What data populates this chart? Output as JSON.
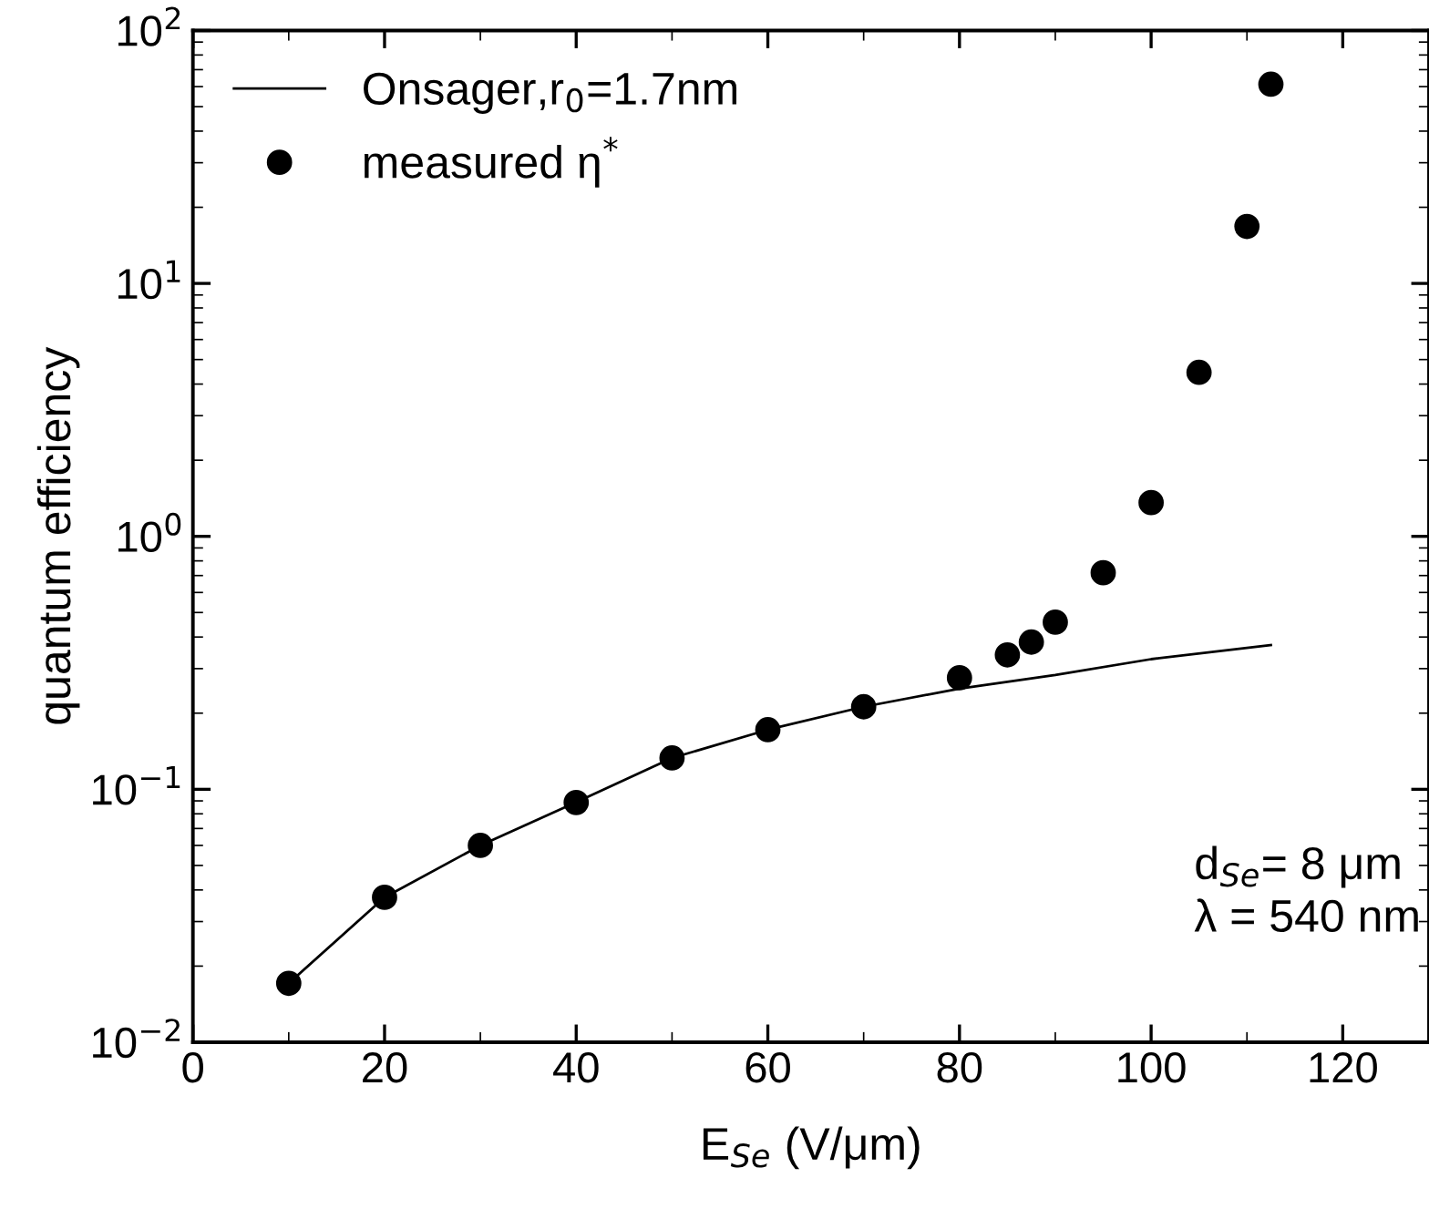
{
  "chart_data": {
    "type": "scatter",
    "xlabel": "E$_{Se}$ (V/μm)",
    "ylabel": "quantum efficiency",
    "log": "y",
    "xlim": [
      0,
      129
    ],
    "ylim": [
      0.01,
      100
    ],
    "xticks": [
      0,
      20,
      40,
      60,
      80,
      100,
      120
    ],
    "yticks": [
      {
        "value": 0.01,
        "label": "10$^{−2}$"
      },
      {
        "value": 0.1,
        "label": "10$^{−1}$"
      },
      {
        "value": 1,
        "label": "10$^{0}$"
      },
      {
        "value": 10,
        "label": "10$^{1}$"
      },
      {
        "value": 100,
        "label": "10$^{2}$"
      }
    ],
    "grid": false,
    "legend": "top left",
    "annotations": [
      "d$_{Se}$= 8 μm\nλ = 540 nm"
    ],
    "series": [
      {
        "name": "Onsager,r$_{0}$=1.7nm",
        "type": "line",
        "color": "#000000",
        "marker": "none",
        "line_style": "solid",
        "x": [
          10,
          20,
          30,
          40,
          50,
          60,
          70,
          80,
          90,
          100,
          112.5
        ],
        "values": [
          0.0171,
          0.0374,
          0.06,
          0.089,
          0.133,
          0.172,
          0.212,
          0.25,
          0.283,
          0.327,
          0.372
        ]
      },
      {
        "name": "measured η$^{*}$",
        "color": "#000000",
        "marker": "circle",
        "x": [
          10,
          20,
          30,
          40,
          50,
          60,
          70,
          80,
          85,
          87.5,
          90,
          95,
          100,
          105,
          110,
          112.5
        ],
        "values": [
          0.0171,
          0.0374,
          0.06,
          0.0887,
          0.133,
          0.172,
          0.212,
          0.276,
          0.34,
          0.382,
          0.458,
          0.718,
          1.36,
          4.45,
          16.8,
          61.3
        ]
      }
    ]
  }
}
